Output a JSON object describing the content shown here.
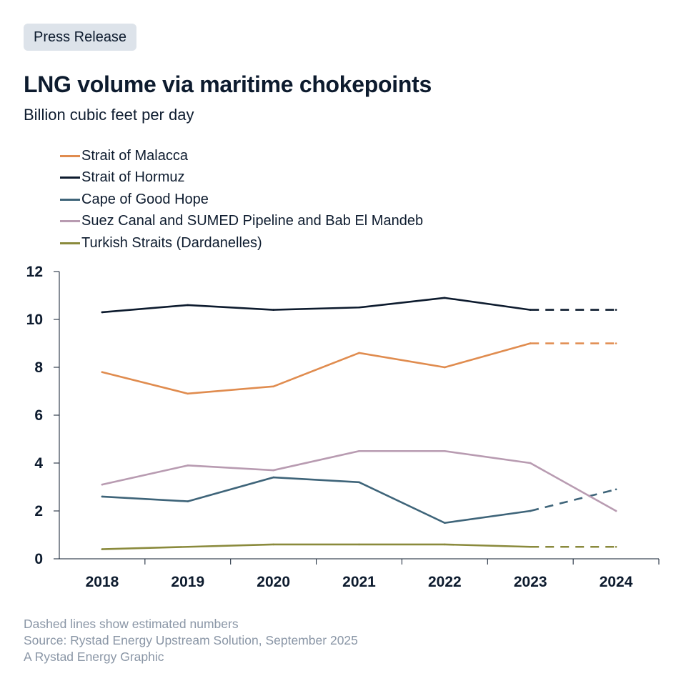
{
  "badge": "Press Release",
  "title": "LNG volume via maritime chokepoints",
  "subtitle": "Billion cubic feet per day",
  "footer": {
    "note": "Dashed lines show estimated numbers",
    "source": "Source: Rystad Energy Upstream Solution, September 2025",
    "credit": "A Rystad Energy Graphic"
  },
  "chart_data": {
    "type": "line",
    "title": "LNG volume via maritime chokepoints",
    "subtitle": "Billion cubic feet per day",
    "categories": [
      "2018",
      "2019",
      "2020",
      "2021",
      "2022",
      "2023",
      "2024"
    ],
    "ylim": [
      0,
      12
    ],
    "yticks": [
      0,
      2,
      4,
      6,
      8,
      10,
      12
    ],
    "grid": false,
    "legend_position": "top-left",
    "estimated_note": "Dashed lines show estimated numbers",
    "series": [
      {
        "name": "Strait of Malacca",
        "color": "#e08c4f",
        "values": [
          7.8,
          6.9,
          7.2,
          8.6,
          8.0,
          9.0,
          9.0
        ],
        "dashed_from_index": 5
      },
      {
        "name": "Strait of Hormuz",
        "color": "#0d1b2e",
        "values": [
          10.3,
          10.6,
          10.4,
          10.5,
          10.9,
          10.4,
          10.4
        ],
        "dashed_from_index": 5
      },
      {
        "name": "Cape of Good Hope",
        "color": "#3e6479",
        "values": [
          2.6,
          2.4,
          3.4,
          3.2,
          1.5,
          2.0,
          2.9
        ],
        "dashed_from_index": 5
      },
      {
        "name": "Suez Canal and SUMED Pipeline and Bab El Mandeb",
        "color": "#b89bb1",
        "values": [
          3.1,
          3.9,
          3.7,
          4.5,
          4.5,
          4.0,
          2.0
        ],
        "dashed_from_index": null
      },
      {
        "name": "Turkish Straits (Dardanelles)",
        "color": "#8a8a3c",
        "values": [
          0.4,
          0.5,
          0.6,
          0.6,
          0.6,
          0.5,
          0.5
        ],
        "dashed_from_index": 5
      }
    ]
  }
}
